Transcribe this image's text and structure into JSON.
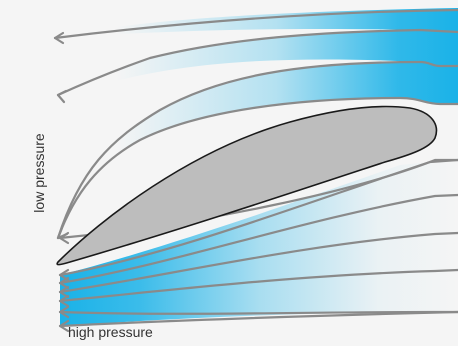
{
  "labels": {
    "low_pressure": "low pressure",
    "high_pressure": "high pressure"
  },
  "colors": {
    "background": "#f5f5f5",
    "flow_fill": "#1ab2e8",
    "streamline": "#8a8a8a",
    "airfoil_fill": "#bdbdbd",
    "airfoil_outline": "#1a1a1a",
    "text": "#333333"
  },
  "elements": {
    "upper_streamlines": 5,
    "lower_streamlines": 6
  }
}
